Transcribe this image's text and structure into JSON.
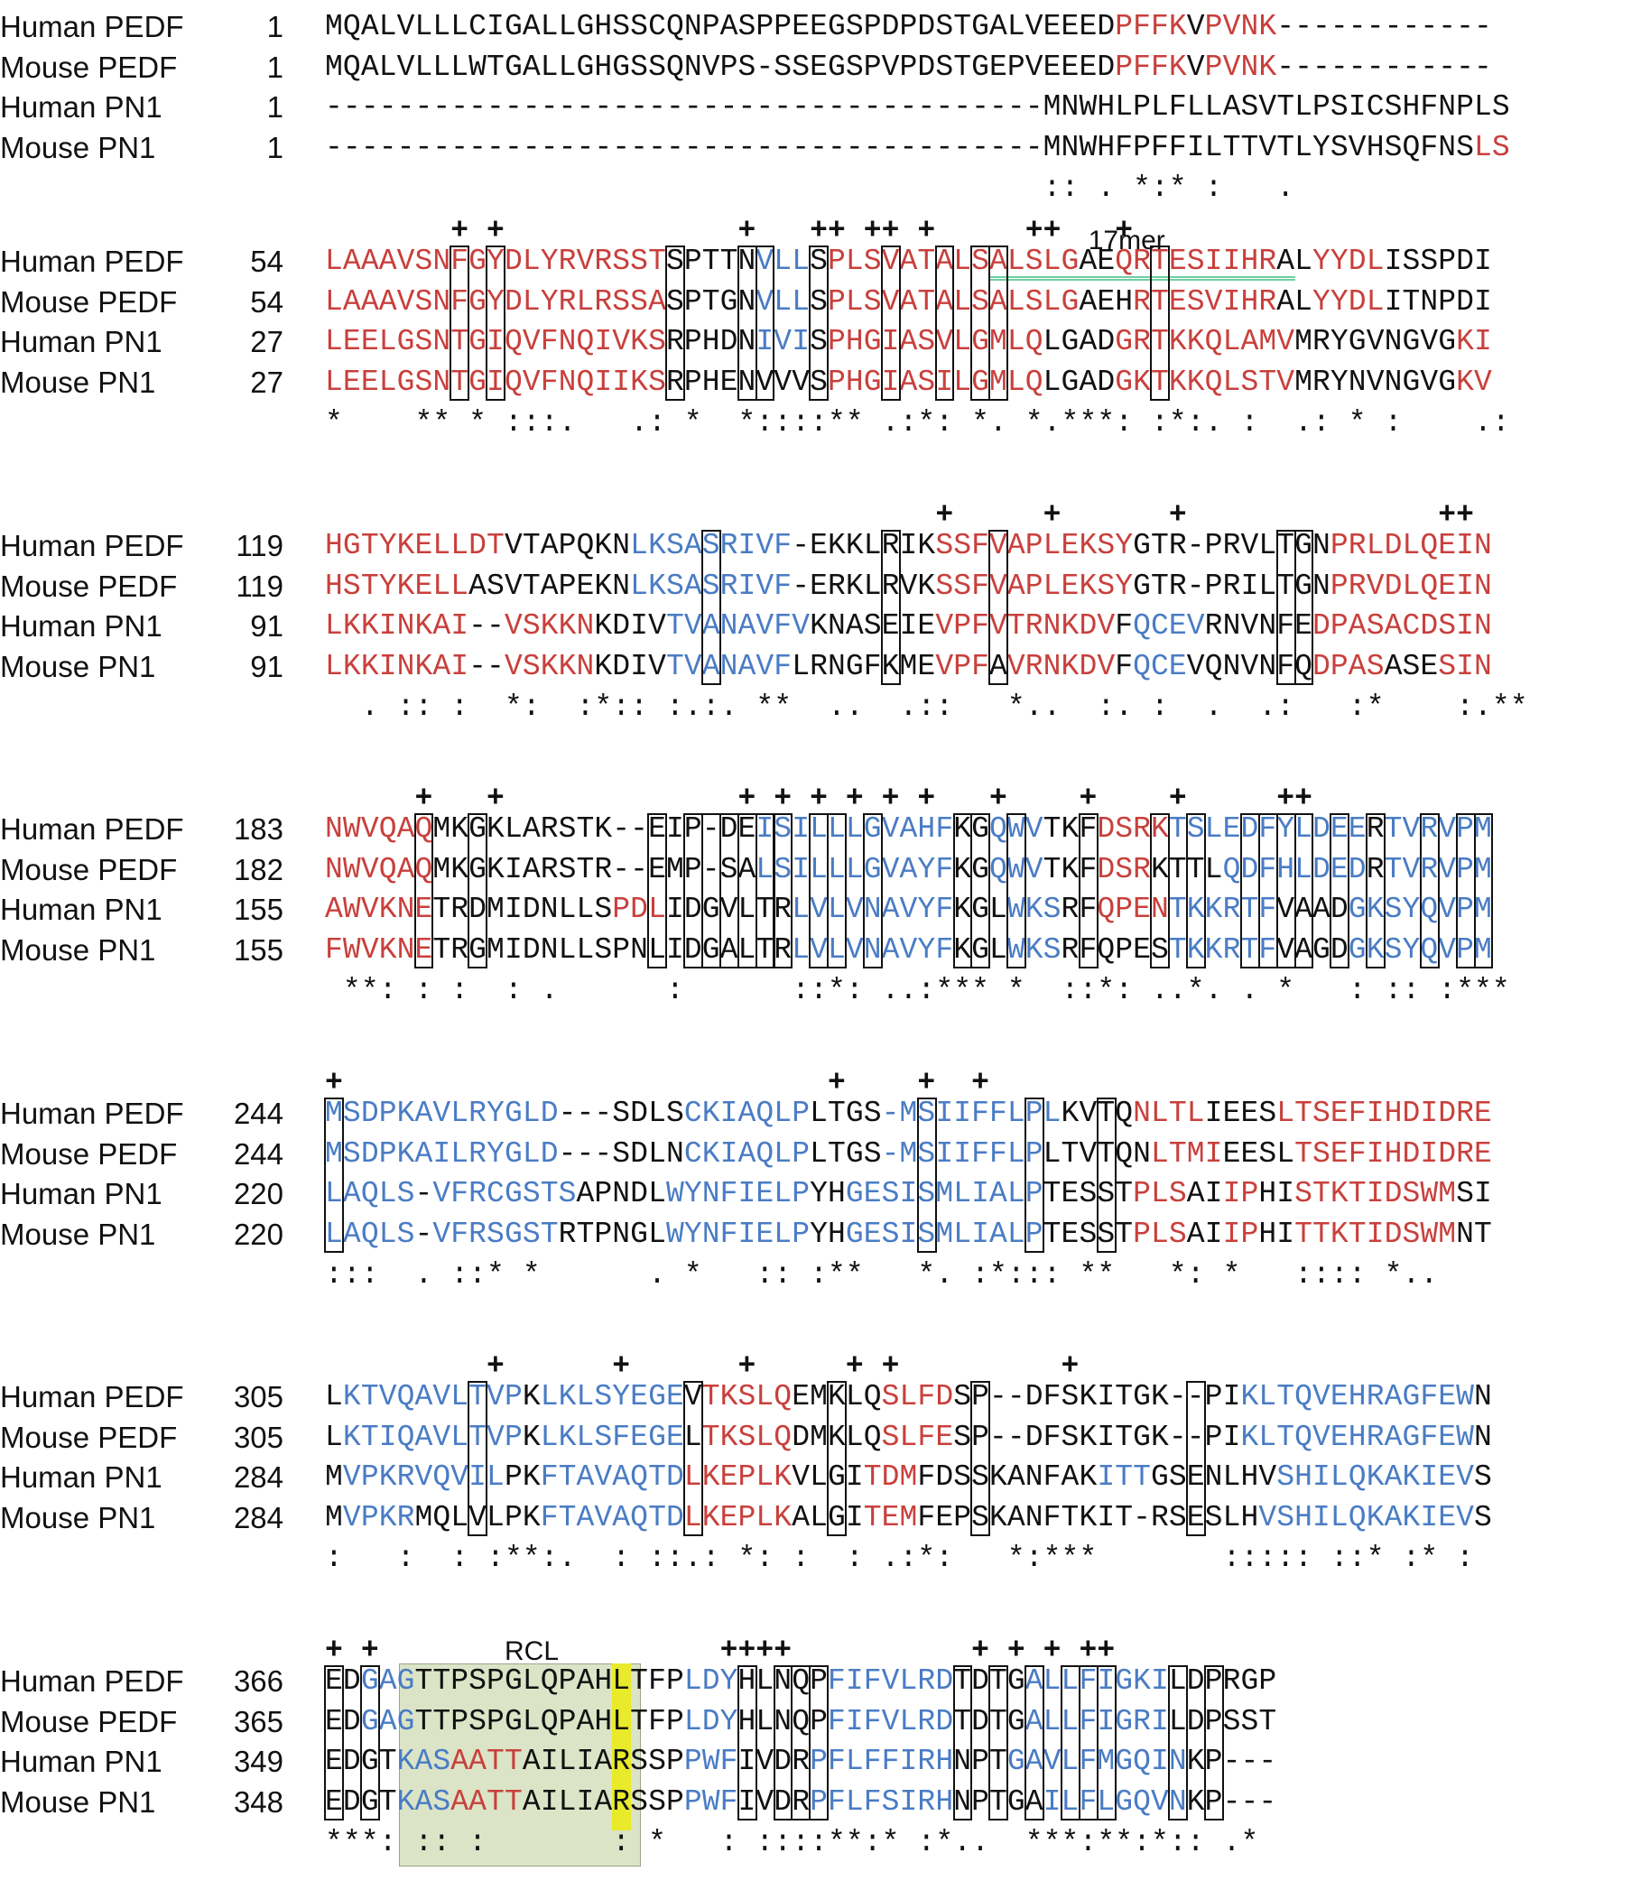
{
  "blocks": [
    {
      "label": "",
      "plus": "",
      "rows": [
        {
          "name": "Human PEDF",
          "num": "1",
          "seq": "MQALVLLLCIGALLGHSSCQNPASPPEEGSPDPDSTGALVEEEDPFFKVPVNK------------",
          "colors": "kkkkkkkkkkkkkkkkkkkkkkkkkkkkkkkkkkkkkkkkkkkkrrrrkrrrrkkkkkkkkkkkk"
        },
        {
          "name": "Mouse PEDF",
          "num": "1",
          "seq": "MQALVLLLWTGALLGHGSSQNVPS-SSEGSPVPDSTGEPVEEEDPFFKVPVNK------------",
          "colors": "kkkkkkkkkkkkkkkkkkkkkkkkkkkkkkkkkkkkkkkkkkkkrrrrkrrrrkkkkkkkkkkkk"
        },
        {
          "name": "Human PN1",
          "num": "1",
          "seq": "----------------------------------------MNWHLPLFLLASVTLPSICSHFNPLS",
          "colors": "kkkkkkkkkkkkkkkkkkkkkkkkkkkkkkkkkkkkkkkkkkkkkkkkkkkkkkkkkkkkkkkkkk"
        },
        {
          "name": "Mouse PN1",
          "num": "1",
          "seq": "----------------------------------------MNWHFPFFILTTVTLYSVHSQFNSLS",
          "colors": "kkkkkkkkkkkkkkkkkkkkkkkkkkkkkkkkkkkkkkkkkkkkkkkkkkkkkkkkkkkkkkkkrr"
        }
      ],
      "cons": "                                        :: . *:* :   ."
    },
    {
      "label": "17mer",
      "plus": "       + +             +   ++ ++ +     ++   +",
      "rows": [
        {
          "name": "Human PEDF",
          "num": "54",
          "seq": "LAAAVSNFGYDLYRVRSSTSPTTNVLLSPLSVATALSALSLGAEQRTESIIHRALYYDLISSPDI",
          "colors": "rrrrrrrrrrrrrrrrrrrkkkkkbbbkrrrrrrrrrrrrrrkkrrrrrrrrrkkrrrrkkkkkkr"
        },
        {
          "name": "Mouse PEDF",
          "num": "54",
          "seq": "LAAAVSNFGYDLYRLRSSASPTGNVLLSPLSVATALSALSLGAEHRTESVIHRALYYDLITNPDI",
          "colors": "rrrrrrrrrrrrrrrrrrrkkkkkbbbkrrrrrrrrrrrrrrkkkrrrrrrrrkkrrrrkkkkkkr"
        },
        {
          "name": "Human PN1",
          "num": "27",
          "seq": "LEELGSNTGIQVFNQIVKSRPHDNIVISPHGIASVLGMLQLGADGRTKKQLAMVMRYGVNGVGKI",
          "colors": "rrrrrrrrrrrrrrrrrrrkkkkkbbbkrrrrrrrrrrrrkkkkrrrrrrrrrrkkkkkkkkkrrr"
        },
        {
          "name": "Mouse PN1",
          "num": "27",
          "seq": "LEELGSNTGIQVFNQIIKSRPHENVVVSPHGIASILGMLQLGADGKTKKQLSTVMRYNVNGVGKV",
          "colors": "rrrrrrrrrrrrrrrrrrrkkkkkkkkkrrrrrrrrrrrrkkkkrrrrrrrrrrkkkkkkkkkrrr"
        }
      ],
      "cons": "*    ** * :::.   .: *  *::::** .:*: *. *.***: :*:. :  .: * :    .:"
    },
    {
      "label": "",
      "plus": "                                  +     +      +              ++",
      "rows": [
        {
          "name": "Human PEDF",
          "num": "119",
          "seq": "HGTYKELLDTVTAPQKNLKSASRIVF-EKKLRIKSSFVAPLEKSYGTR-PRVLTGNPRLDLQEIN",
          "colors": "rrrrrrrrrrkkkkkkkbbbbbbbbbkkkkkkkkrrrrrrrrrrrkkkkkkkkkkkrrrrrrrrrr"
        },
        {
          "name": "Mouse PEDF",
          "num": "119",
          "seq": "HSTYKELLASVTAPEKNLKSASRIVF-ERKLRVKSSFVAPLEKSYGTR-PRILTGNPRVDLQEIN",
          "colors": "rrrrrrrrkkkkkkkkkbbbbbbbbbkkkkkkkkrrrrrrrrrrrkkkkkkkkkkkrrrrrrrrrr"
        },
        {
          "name": "Human PN1",
          "num": "91",
          "seq": "LKKINKAI--VSKKNKDIVTVANAVFVKNASEIEVPFVTRNKDVFQCEVRNVNFEDPASACDSIN",
          "colors": "rrrrrrrrkkrrrrrkkkkbbbbbbbbkkkkkkkrrrrrrrrrrkbbbbkkkkkkrrrrrrrrrr"
        },
        {
          "name": "Mouse PN1",
          "num": "91",
          "seq": "LKKINKAI--VSKKNKDIVTVANAVFLRNGFKMEVPFAVRNKDVFQCEVQNVNFQDPASASESIN",
          "colors": "rrrrrrrrkkrrrrrkkkkbbbbbbbkkkkkkkkrrrkrrrrrrkbbbkkkkkkkrrrrkkkrrr"
        }
      ],
      "cons": "  . :: :  *:  :*:: :.:. **  ..  .::   *..  :. :  .  .:   :*    :.**"
    },
    {
      "label": "",
      "plus": "     +   +             + + + + + +   +    +    +     ++",
      "rows": [
        {
          "name": "Human PEDF",
          "num": "183",
          "seq": "NWVQAQMKGKLARSTK--EIP-DEISILLLGVAHFKGQWVTKFDSRKTSLEDFYLDEERTVRVPM",
          "colors": "rrrrrrkkkkkkkkkkkkkkkkkkbbbbbbbbbbbkkbbbkkkrrrrbbbbbbbbbbbkbbbbbb"
        },
        {
          "name": "Mouse PEDF",
          "num": "182",
          "seq": "NWVQAQMKGKIARSTR--EMP-SALSILLLGVAYFKGQWVTKFDSRKTTLQDFHLDEDRTVRVPM",
          "colors": "rrrrrrkkkkkkkkkkkkkkkkkkbbbbbbbbbbbkkbbbkkkrrrkkkkbbbbbbbbkbbbbbb"
        },
        {
          "name": "Human PN1",
          "num": "155",
          "seq": "AWVKNETRDMIDNLLSPDLIDGVLTRLVLVNAVYFKGLWKSRFQPENTKKRTFVAADGKSYQVPM",
          "colors": "rrrrrrkkkkkkkkkkrrrkkkkkkkbbbbbbbbbkkkbbbkkrrrrbbbbbbkkkkbbbbbbbb"
        },
        {
          "name": "Mouse PN1",
          "num": "155",
          "seq": "FWVKNETRGMIDNLLSPNLIDGALTRLVLVNAVYFKGLWKSRFQPESTKKRTFVAGDGKSYQVPM",
          "colors": "rrrrrrkkkkkkkkkkkkkkkkkkkkbbbbbbbbbkkkbbbkkkkkkbbbbbbkkkkbbbbbbbb"
        }
      ],
      "cons": " **: : :  : .      :      ::*: ..:*** *  ::*: ..*. . *   : :: :***"
    },
    {
      "label": "",
      "plus": "+                           +    +  +",
      "rows": [
        {
          "name": "Human PEDF",
          "num": "244",
          "seq": "MSDPKAVLRYGLD---SDLSCKIAQLPLTGS-MSIIFFLPLKVTQNLTLIEESLTSEFIHDIDRE",
          "colors": "bbbbbbbbbbbbbkkkkkkkbbbbbbbkkkkbbbbbbbbbbkkkkrrrrkkkkrrrrrrrrrrrr"
        },
        {
          "name": "Mouse PEDF",
          "num": "244",
          "seq": "MSDPKAILRYGLD---SDLNCKIAQLPLTGS-MSIIFFLPLTVTQNLTMIEESLTSEFIHDIDRE",
          "colors": "bbbbbbbbbbbbbkkkkkkkbbbbbbbkkkkbbbbbbbbbkkkkkkrrrrkkkkrrrrrrrrrrr"
        },
        {
          "name": "Human PN1",
          "num": "220",
          "seq": "LAQLS-VFRCGSTSAPNDLWYNFIELPYHGESISMLIALPTESSTPLSAIIPHISTKTIDSWMSI",
          "colors": "bbbbbkbbbbbbbbkkkkkbbbbbbbbkkbbbbbbbbbbbkkkkkrrrkkrrkkrrrrrrrrrkk"
        },
        {
          "name": "Mouse PN1",
          "num": "220",
          "seq": "LAQLS-VFRSGSTRTPNGLWYNFIELPYHGESISMLIALPTESSTPLSAIIPHITTKTIDSWMNT",
          "colors": "bbbbbkbbbbbbbkkkkkkbbbbbbbbkkbbbbbbbbbbbkkkkkrrrkkrrkkrrrrrrrrrkk"
        }
      ],
      "cons": ":::  . ::* *      . *   :: :**   *. :*::: **   *: *   :::: *.."
    },
    {
      "label": "",
      "plus": "         +      +      +     + +         +",
      "rows": [
        {
          "name": "Human PEDF",
          "num": "305",
          "seq": "LKTVQAVLTVPKLKLSYEGEVTKSLQEMKLQSLFDSP--DFSKITGK--PIKLTQVEHRAGFEWN",
          "colors": "kbbbbbbbbbbkbbbbbbbbkrrrrrkkkkkrrrrkkkkkkkkkkkkkkkkbbbbbbbbbbbbbk"
        },
        {
          "name": "Mouse PEDF",
          "num": "305",
          "seq": "LKTIQAVLTVPKLKLSFEGELTKSLQDMKLQSLFESP--DFSKITGK--PIKLTQVEHRAGFEWN",
          "colors": "kbbbbbbbbbbkbbbbbbbbkrrrrrkkkkkrrrrkkkkkkkkkkkkkkkkbbbbbbbbbbbbbk"
        },
        {
          "name": "Human PN1",
          "num": "284",
          "seq": "MVPKRVQVILPKFTAVAQTDLKEPLKVLGITDMFDSSKANFAKITTGSENLHVSHILQKAKIEVS",
          "colors": "kbbbbbbbbbkkbbbbbbbbrrrrrrkkkkrrrkkkkkkkkkkbbbkkkkkkkbbbbbbbbbbbk"
        },
        {
          "name": "Mouse PN1",
          "num": "284",
          "seq": "MVPKRMQLVLPKFTAVAQTDLKEPLKALGITEMFEPSKANFTKIT-RSESLHVSHILQKAKIEVS",
          "colors": "kbbbbkkkkkkkbbbbbbbbrrrrrrkkkkrrrkkkkkkkkkkkkkkkkkkkbbbbbbbbbbbbk"
        }
      ],
      "cons": ":   :  : :**:.  : ::.: *: :  : .:*:   *:***       ::::: ::* :* :"
    },
    {
      "label": "RCL",
      "plus": "+ +                   ++++          + + + ++",
      "rows": [
        {
          "name": "Human PEDF",
          "num": "366",
          "seq": "EDGAGTTPSPGLQPAHLTFPLDYHLNQPFIFVLRDTDTGALLFIGKILDPRGP",
          "colors": "kkbbbkkkkkkkkkkkkkkkbbbkkkkkbbbbbbbkkkkbbbbbbbbkkkkk"
        },
        {
          "name": "Mouse PEDF",
          "num": "365",
          "seq": "EDGAGTTPSPGLQPAHLTFPLDYHLNQPFIFVLRDTDTGALLFIGRILDPSST",
          "colors": "kkbbbkkkkkkkkkkkkkkkbbbkkkkkbbbbbbbkkkkbbbbbbbbkkkkk"
        },
        {
          "name": "Human PN1",
          "num": "349",
          "seq": "EDGTKASAATTAILIARSSPPWFIVDRPFLFFIRHNPTGAVLFMGQINKP---",
          "colors": "kkkkbbbrrrrkkkkkkkkkbbbkkkkbbbbbbbbkkkbbbbbbbbbbkkkkk"
        },
        {
          "name": "Mouse PN1",
          "num": "348",
          "seq": "EDGTKASAATTAILIARSSPPWFIVDRPFLFSIRHNPTGAILFLGQVNKP---",
          "colors": "kkkkbbbrrrrkkkkkkkkkbbbkkkkbbbbbbbbkkkkkbbbbbbbbkkkkk"
        }
      ],
      "cons": "***: :: :       : *   : ::::**:* :*..  ***:**:*:: .*"
    }
  ]
}
